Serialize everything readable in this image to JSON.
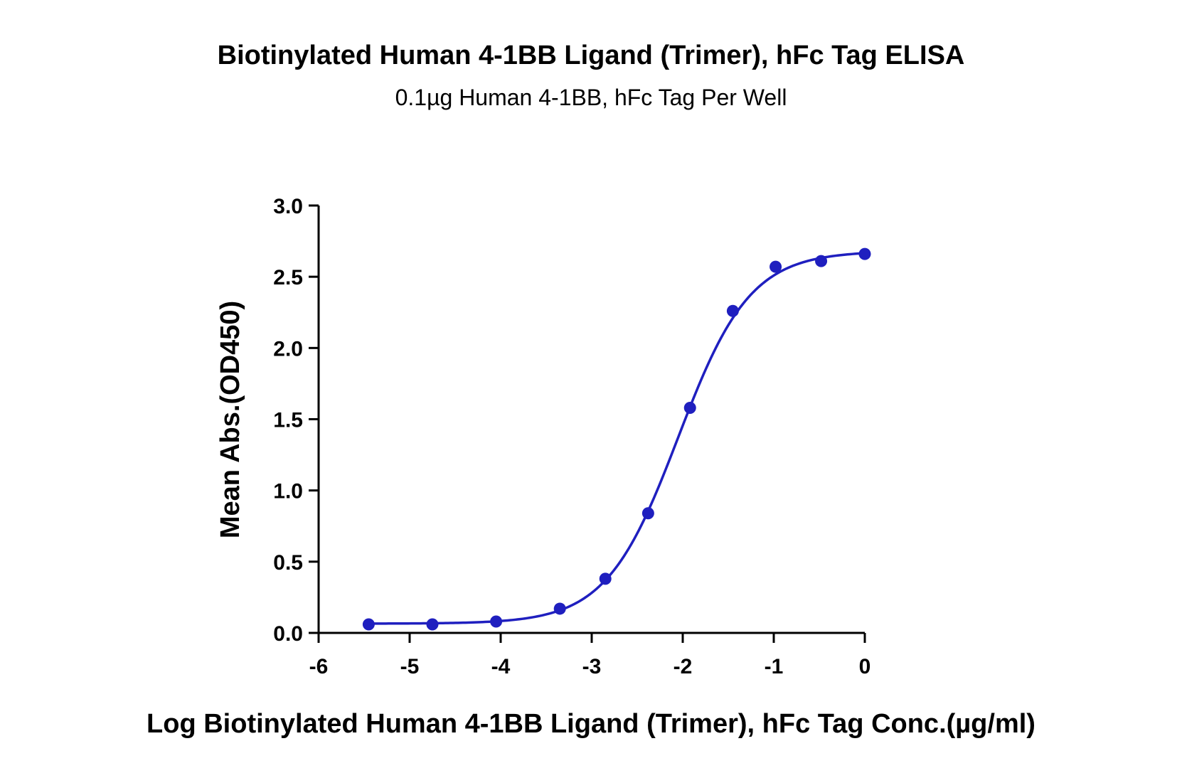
{
  "chart_data": {
    "type": "scatter",
    "title": "Biotinylated Human 4-1BB Ligand (Trimer), hFc Tag ELISA",
    "subtitle": "0.1µg Human 4-1BB, hFc Tag Per Well",
    "xlabel": "Log Biotinylated Human 4-1BB Ligand (Trimer), hFc Tag Conc.(µg/ml)",
    "ylabel": "Mean Abs.(OD450)",
    "xlim": [
      -6,
      0
    ],
    "ylim": [
      0,
      3.0
    ],
    "x_ticks": [
      "-6",
      "-5",
      "-4",
      "-3",
      "-2",
      "-1",
      "0"
    ],
    "y_ticks": [
      "0.0",
      "0.5",
      "1.0",
      "1.5",
      "2.0",
      "2.5",
      "3.0"
    ],
    "grid": false,
    "fit": "four-parameter logistic",
    "color": "#1f1fbf",
    "series": [
      {
        "points": [
          {
            "x": -5.45,
            "y": 0.06
          },
          {
            "x": -4.75,
            "y": 0.06
          },
          {
            "x": -4.05,
            "y": 0.08
          },
          {
            "x": -3.35,
            "y": 0.17
          },
          {
            "x": -2.85,
            "y": 0.38
          },
          {
            "x": -2.38,
            "y": 0.84
          },
          {
            "x": -1.92,
            "y": 1.58
          },
          {
            "x": -1.45,
            "y": 2.26
          },
          {
            "x": -0.98,
            "y": 2.57
          },
          {
            "x": -0.48,
            "y": 2.61
          },
          {
            "x": 0.0,
            "y": 2.66
          }
        ],
        "curve": {
          "bottom": 0.065,
          "top": 2.68,
          "log_ec50": -2.05,
          "hill_slope": 1.1
        }
      }
    ]
  }
}
